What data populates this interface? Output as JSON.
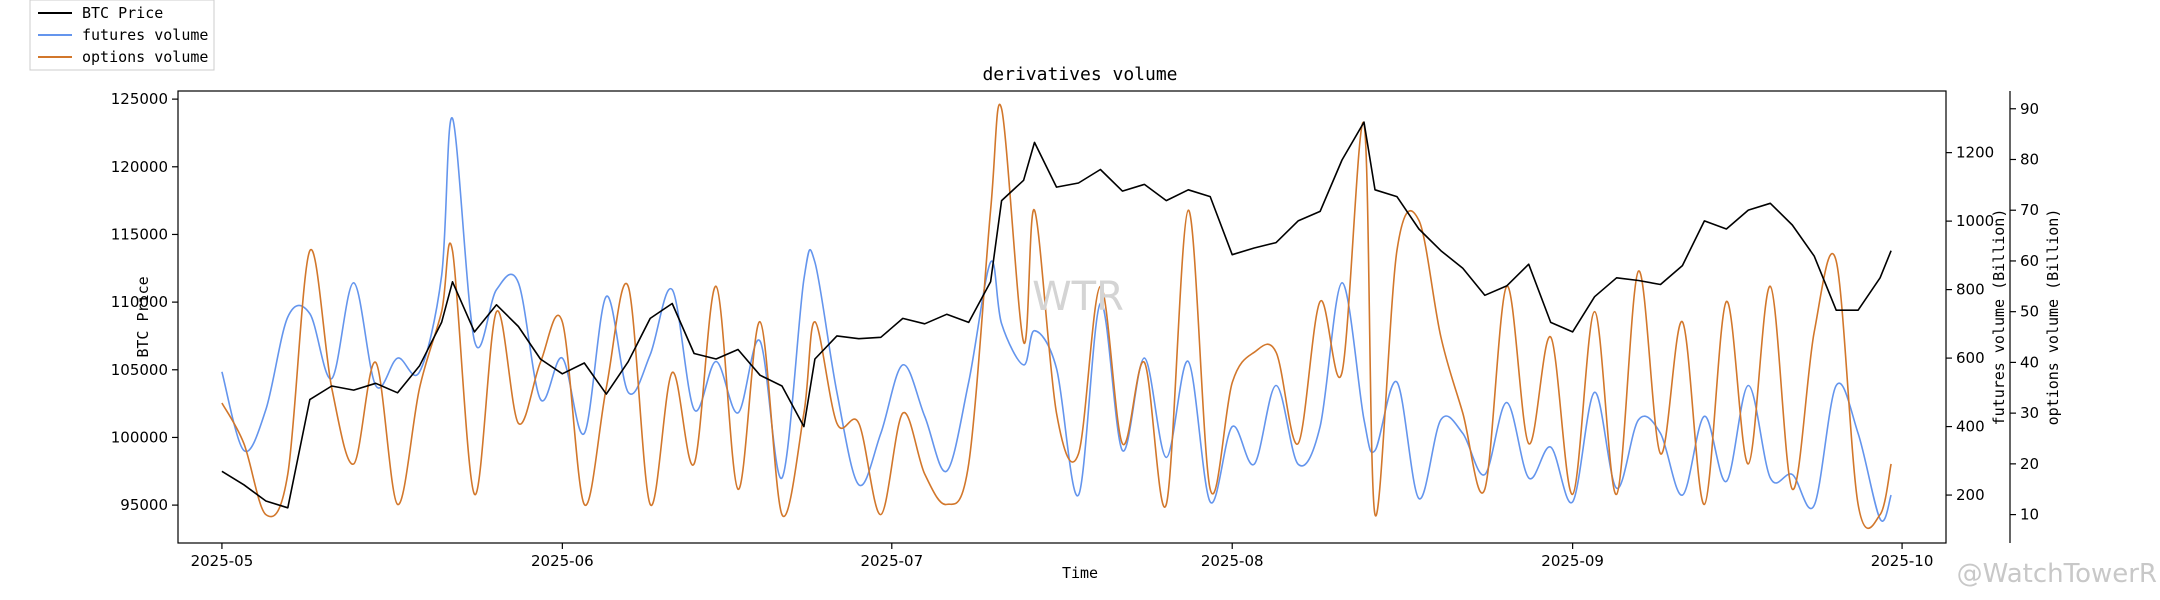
{
  "chart_data": {
    "type": "line",
    "title": "derivatives volume",
    "xlabel": "Time",
    "ylabel_left": "BTC Price",
    "ylabel_right1": "futures volume (Billion)",
    "ylabel_right2": "options volume (Billion)",
    "x_ticks": [
      "2025-05",
      "2025-06",
      "2025-07",
      "2025-08",
      "2025-09",
      "2025-10"
    ],
    "y_left_ticks": [
      "95000",
      "100000",
      "105000",
      "110000",
      "115000",
      "120000",
      "125000"
    ],
    "y_right1_ticks": [
      "200",
      "400",
      "600",
      "800",
      "1000",
      "1200"
    ],
    "y_right2_ticks": [
      "10",
      "20",
      "30",
      "40",
      "50",
      "60",
      "70",
      "80",
      "90"
    ],
    "xlim": [
      "2025-04-27",
      "2025-10-05"
    ],
    "ylim_left": [
      92200,
      125600
    ],
    "ylim_right1": [
      60,
      1380
    ],
    "ylim_right2": [
      4.4,
      93.5
    ],
    "legend_placement": "outside top-left",
    "grid": false,
    "colors": {
      "btc": "#000000",
      "futures": "#6495ed",
      "options": "#d2772b"
    },
    "series": [
      {
        "name": "BTC Price",
        "axis": "left",
        "x": [
          "2025-05-01",
          "2025-05-03",
          "2025-05-05",
          "2025-05-07",
          "2025-05-09",
          "2025-05-11",
          "2025-05-13",
          "2025-05-15",
          "2025-05-17",
          "2025-05-19",
          "2025-05-21",
          "2025-05-22",
          "2025-05-24",
          "2025-05-26",
          "2025-05-28",
          "2025-05-30",
          "2025-06-01",
          "2025-06-03",
          "2025-06-05",
          "2025-06-07",
          "2025-06-09",
          "2025-06-11",
          "2025-06-13",
          "2025-06-15",
          "2025-06-17",
          "2025-06-19",
          "2025-06-21",
          "2025-06-23",
          "2025-06-24",
          "2025-06-26",
          "2025-06-28",
          "2025-06-30",
          "2025-07-02",
          "2025-07-04",
          "2025-07-06",
          "2025-07-08",
          "2025-07-10",
          "2025-07-11",
          "2025-07-13",
          "2025-07-14",
          "2025-07-16",
          "2025-07-18",
          "2025-07-20",
          "2025-07-22",
          "2025-07-24",
          "2025-07-26",
          "2025-07-28",
          "2025-07-30",
          "2025-08-01",
          "2025-08-03",
          "2025-08-05",
          "2025-08-07",
          "2025-08-09",
          "2025-08-11",
          "2025-08-13",
          "2025-08-14",
          "2025-08-16",
          "2025-08-18",
          "2025-08-20",
          "2025-08-22",
          "2025-08-24",
          "2025-08-26",
          "2025-08-28",
          "2025-08-30",
          "2025-09-01",
          "2025-09-03",
          "2025-09-05",
          "2025-09-07",
          "2025-09-09",
          "2025-09-11",
          "2025-09-13",
          "2025-09-15",
          "2025-09-17",
          "2025-09-19",
          "2025-09-21",
          "2025-09-23",
          "2025-09-25",
          "2025-09-27",
          "2025-09-29",
          "2025-09-30"
        ],
        "y": [
          97500,
          96500,
          95300,
          94800,
          102800,
          103800,
          103500,
          104000,
          103300,
          105300,
          108500,
          111500,
          107800,
          109800,
          108200,
          105800,
          104700,
          105500,
          103200,
          105600,
          108800,
          109900,
          106200,
          105800,
          106500,
          104600,
          103800,
          100800,
          105800,
          107500,
          107300,
          107400,
          108800,
          108400,
          109100,
          108500,
          111500,
          117500,
          119000,
          121800,
          118500,
          118800,
          119800,
          118200,
          118700,
          117500,
          118300,
          117800,
          113500,
          114000,
          114400,
          116000,
          116700,
          120500,
          123300,
          118300,
          117800,
          115400,
          113800,
          112500,
          110500,
          111200,
          112800,
          108500,
          107800,
          110400,
          111800,
          111600,
          111300,
          112700,
          116000,
          115400,
          116800,
          117300,
          115700,
          113400,
          109400,
          109400,
          111800,
          113800
        ]
      },
      {
        "name": "futures volume",
        "axis": "right1",
        "x": [
          "2025-05-01",
          "2025-05-03",
          "2025-05-05",
          "2025-05-07",
          "2025-05-09",
          "2025-05-11",
          "2025-05-13",
          "2025-05-15",
          "2025-05-17",
          "2025-05-19",
          "2025-05-21",
          "2025-05-22",
          "2025-05-24",
          "2025-05-26",
          "2025-05-28",
          "2025-05-30",
          "2025-06-01",
          "2025-06-03",
          "2025-06-05",
          "2025-06-07",
          "2025-06-09",
          "2025-06-11",
          "2025-06-13",
          "2025-06-15",
          "2025-06-17",
          "2025-06-19",
          "2025-06-21",
          "2025-06-23",
          "2025-06-24",
          "2025-06-26",
          "2025-06-28",
          "2025-06-30",
          "2025-07-02",
          "2025-07-04",
          "2025-07-06",
          "2025-07-08",
          "2025-07-10",
          "2025-07-11",
          "2025-07-13",
          "2025-07-14",
          "2025-07-16",
          "2025-07-18",
          "2025-07-20",
          "2025-07-22",
          "2025-07-24",
          "2025-07-26",
          "2025-07-28",
          "2025-07-30",
          "2025-08-01",
          "2025-08-03",
          "2025-08-05",
          "2025-08-07",
          "2025-08-09",
          "2025-08-11",
          "2025-08-13",
          "2025-08-14",
          "2025-08-16",
          "2025-08-18",
          "2025-08-20",
          "2025-08-22",
          "2025-08-24",
          "2025-08-26",
          "2025-08-28",
          "2025-08-30",
          "2025-09-01",
          "2025-09-03",
          "2025-09-05",
          "2025-09-07",
          "2025-09-09",
          "2025-09-11",
          "2025-09-13",
          "2025-09-15",
          "2025-09-17",
          "2025-09-19",
          "2025-09-21",
          "2025-09-23",
          "2025-09-25",
          "2025-09-27",
          "2025-09-29",
          "2025-09-30"
        ],
        "y": [
          560,
          330,
          450,
          720,
          730,
          540,
          820,
          520,
          600,
          560,
          840,
          1300,
          650,
          800,
          820,
          480,
          600,
          380,
          780,
          500,
          610,
          800,
          450,
          590,
          440,
          650,
          250,
          830,
          880,
          500,
          230,
          380,
          580,
          430,
          270,
          530,
          880,
          700,
          580,
          680,
          570,
          200,
          760,
          330,
          600,
          310,
          590,
          180,
          400,
          290,
          520,
          290,
          400,
          820,
          420,
          330,
          530,
          190,
          420,
          380,
          260,
          470,
          250,
          340,
          180,
          500,
          220,
          420,
          380,
          200,
          430,
          240,
          520,
          250,
          260,
          170,
          520,
          380,
          130,
          200
        ]
      },
      {
        "name": "options volume",
        "axis": "right2",
        "x": [
          "2025-05-01",
          "2025-05-03",
          "2025-05-05",
          "2025-05-07",
          "2025-05-09",
          "2025-05-11",
          "2025-05-13",
          "2025-05-15",
          "2025-05-17",
          "2025-05-19",
          "2025-05-21",
          "2025-05-22",
          "2025-05-24",
          "2025-05-26",
          "2025-05-28",
          "2025-05-30",
          "2025-06-01",
          "2025-06-03",
          "2025-06-05",
          "2025-06-07",
          "2025-06-09",
          "2025-06-11",
          "2025-06-13",
          "2025-06-15",
          "2025-06-17",
          "2025-06-19",
          "2025-06-21",
          "2025-06-23",
          "2025-06-24",
          "2025-06-26",
          "2025-06-28",
          "2025-06-30",
          "2025-07-02",
          "2025-07-04",
          "2025-07-06",
          "2025-07-08",
          "2025-07-10",
          "2025-07-11",
          "2025-07-13",
          "2025-07-14",
          "2025-07-16",
          "2025-07-18",
          "2025-07-20",
          "2025-07-22",
          "2025-07-24",
          "2025-07-26",
          "2025-07-28",
          "2025-07-30",
          "2025-08-01",
          "2025-08-03",
          "2025-08-05",
          "2025-08-07",
          "2025-08-09",
          "2025-08-11",
          "2025-08-13",
          "2025-08-14",
          "2025-08-16",
          "2025-08-18",
          "2025-08-20",
          "2025-08-22",
          "2025-08-24",
          "2025-08-26",
          "2025-08-28",
          "2025-08-30",
          "2025-09-01",
          "2025-09-03",
          "2025-09-05",
          "2025-09-07",
          "2025-09-09",
          "2025-09-11",
          "2025-09-13",
          "2025-09-15",
          "2025-09-17",
          "2025-09-19",
          "2025-09-21",
          "2025-09-23",
          "2025-09-25",
          "2025-09-27",
          "2025-09-29",
          "2025-09-30"
        ],
        "y": [
          32,
          24,
          10,
          18,
          62,
          35,
          20,
          40,
          12,
          35,
          50,
          62,
          14,
          50,
          28,
          40,
          48,
          12,
          35,
          55,
          12,
          38,
          20,
          55,
          15,
          48,
          10,
          30,
          48,
          28,
          28,
          10,
          30,
          18,
          12,
          20,
          70,
          90,
          44,
          70,
          30,
          22,
          55,
          24,
          40,
          12,
          70,
          15,
          36,
          42,
          42,
          24,
          52,
          38,
          87,
          10,
          62,
          68,
          45,
          30,
          15,
          55,
          24,
          45,
          14,
          50,
          14,
          58,
          22,
          48,
          12,
          52,
          20,
          55,
          15,
          46,
          60,
          12,
          10,
          20
        ]
      }
    ]
  },
  "legend": {
    "items": [
      {
        "label": "BTC Price",
        "color": "#000000"
      },
      {
        "label": "futures volume",
        "color": "#6495ed"
      },
      {
        "label": "options volume",
        "color": "#d2772b"
      }
    ]
  },
  "watermarks": {
    "center": "WTR",
    "corner": "@WatchTowerR"
  }
}
